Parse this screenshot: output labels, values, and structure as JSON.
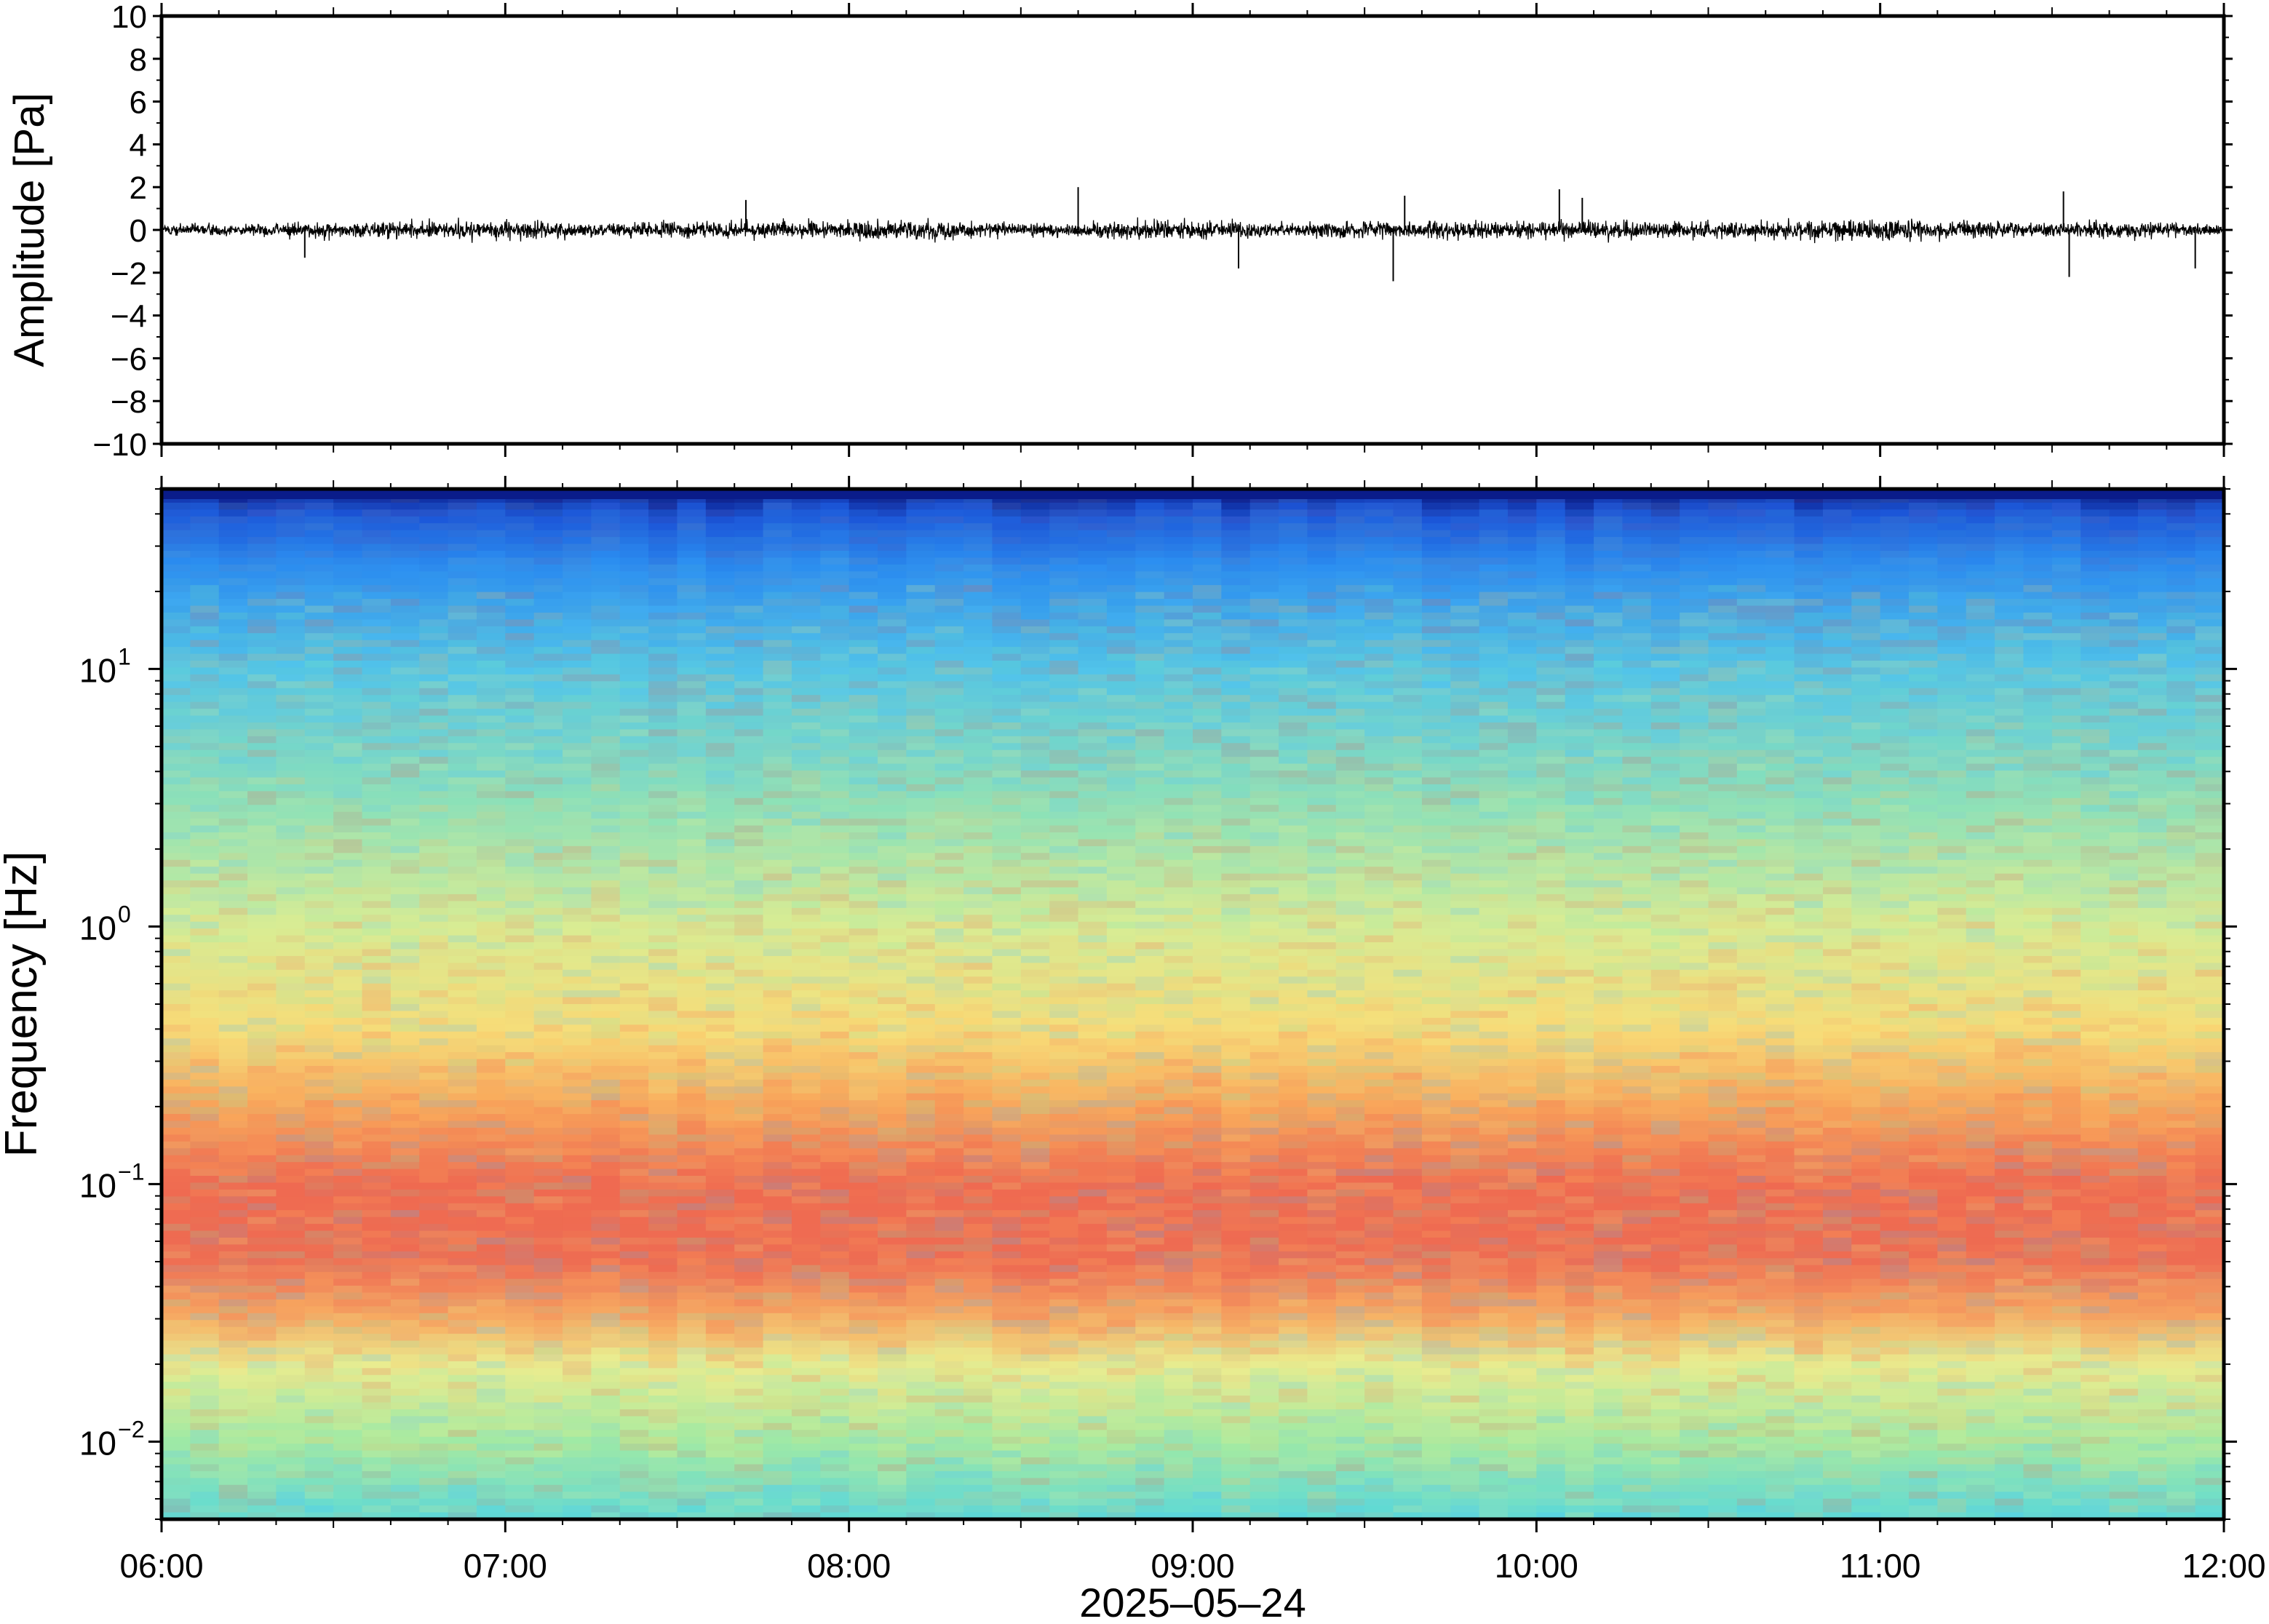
{
  "chart_data": [
    {
      "type": "line",
      "title": "",
      "ylabel": "Amplitude [Pa]",
      "xlabel": "",
      "ylim": [
        -10,
        10
      ],
      "y_ticks": [
        10,
        8,
        6,
        4,
        2,
        0,
        -2,
        -4,
        -6,
        -8,
        -10
      ],
      "y_tick_labels": [
        "10",
        "8",
        "6",
        "4",
        "2",
        "0",
        "−2",
        "−4",
        "−6",
        "−8",
        "−10"
      ],
      "x_range": [
        "06:00",
        "12:00"
      ],
      "series": [
        {
          "baseline": 0,
          "typical_envelope": [
            -0.8,
            0.8
          ],
          "spikes": [
            {
              "time": "06:25",
              "value": -1.3
            },
            {
              "time": "07:42",
              "value": 1.4
            },
            {
              "time": "08:40",
              "value": 2.0
            },
            {
              "time": "09:08",
              "value": -1.8
            },
            {
              "time": "09:35",
              "value": -2.4
            },
            {
              "time": "09:37",
              "value": 1.6
            },
            {
              "time": "10:04",
              "value": 1.9
            },
            {
              "time": "10:08",
              "value": 1.5
            },
            {
              "time": "11:32",
              "value": 1.8
            },
            {
              "time": "11:33",
              "value": -2.2
            },
            {
              "time": "11:55",
              "value": -1.8
            }
          ],
          "color": "#000000"
        }
      ]
    },
    {
      "type": "heatmap",
      "title": "",
      "ylabel": "Frequency [Hz]",
      "xlabel": "2025–05–24",
      "y_scale": "log",
      "ylim": [
        0.005,
        50
      ],
      "y_ticks": [
        {
          "value": 10,
          "base": "10",
          "exp": "1"
        },
        {
          "value": 1,
          "base": "10",
          "exp": "0"
        },
        {
          "value": 0.1,
          "base": "10",
          "exp": "−1"
        },
        {
          "value": 0.01,
          "base": "10",
          "exp": "−2"
        }
      ],
      "x_ticks": [
        "06:00",
        "07:00",
        "08:00",
        "09:00",
        "10:00",
        "11:00",
        "12:00"
      ],
      "x_range": [
        "06:00",
        "12:00"
      ],
      "time_columns": 72,
      "colormap": [
        "#4fc3ff",
        "#7de8b8",
        "#e8ee8a",
        "#ffc060",
        "#f06b55"
      ],
      "colormap_top": "#0a1c8a",
      "spectral_profile": [
        {
          "freq": 50,
          "color": "#0a1c8a"
        },
        {
          "freq": 40,
          "color": "#1b55d8"
        },
        {
          "freq": 25,
          "color": "#2a8cf0"
        },
        {
          "freq": 10,
          "color": "#52c4e6"
        },
        {
          "freq": 3,
          "color": "#8ee0b8"
        },
        {
          "freq": 1,
          "color": "#d6ec95"
        },
        {
          "freq": 0.4,
          "color": "#f7dc78"
        },
        {
          "freq": 0.2,
          "color": "#f8a45a"
        },
        {
          "freq": 0.1,
          "color": "#ef6a50"
        },
        {
          "freq": 0.05,
          "color": "#ee6c52"
        },
        {
          "freq": 0.03,
          "color": "#f6a862"
        },
        {
          "freq": 0.02,
          "color": "#e9ec90"
        },
        {
          "freq": 0.01,
          "color": "#a8eaa0"
        },
        {
          "freq": 0.005,
          "color": "#5cd8d8"
        }
      ]
    }
  ]
}
